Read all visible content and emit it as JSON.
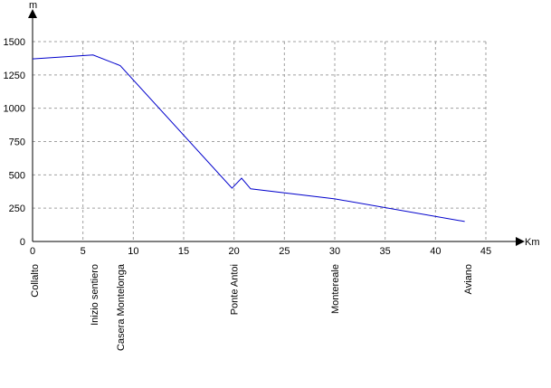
{
  "chart_data": {
    "type": "line",
    "x_label": "Km",
    "y_label": "m",
    "xlim": [
      0,
      45
    ],
    "xticks": [
      0,
      5,
      10,
      15,
      20,
      25,
      30,
      35,
      40,
      45
    ],
    "ylim": [
      0,
      1500
    ],
    "yticks": [
      0,
      250,
      500,
      750,
      1000,
      1250,
      1500
    ],
    "grid": true,
    "series": [
      {
        "color": "#0000cc",
        "x": [
          0,
          6,
          8.7,
          19.8,
          20.75,
          21.65,
          30,
          42.9
        ],
        "values": [
          1370,
          1400,
          1320,
          400,
          475,
          395,
          320,
          150
        ]
      }
    ],
    "annotations": [
      {
        "text": "Collalto",
        "x": 0.2
      },
      {
        "text": "Inizio sentiero",
        "x": 6.1
      },
      {
        "text": "Casera Montelonga",
        "x": 8.7
      },
      {
        "text": "Ponte Antoi",
        "x": 20
      },
      {
        "text": "Montereale",
        "x": 30
      },
      {
        "text": "Aviano",
        "x": 43.2
      }
    ]
  }
}
